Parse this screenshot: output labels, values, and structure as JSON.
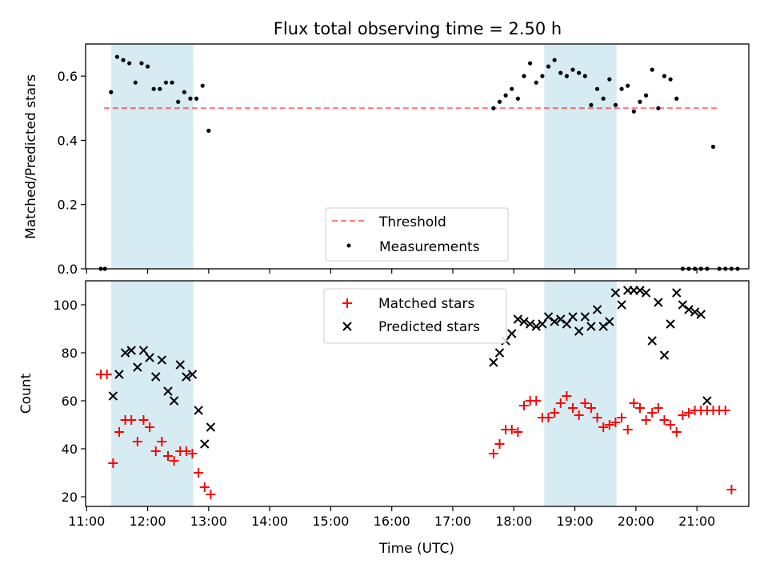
{
  "figure_title": "Flux total observing time = 2.50 h",
  "colors": {
    "span": "#add8e6",
    "threshold": "#ff0000",
    "measurement": "#000000",
    "matched": "#ff0000",
    "predicted": "#000000"
  },
  "chart_data": [
    {
      "type": "scatter",
      "panel": "top",
      "ylabel": "Matched/Predicted stars",
      "xlabel": "",
      "ylim": [
        0,
        0.7
      ],
      "xlim": [
        "10:59",
        "21:51"
      ],
      "yticks": [
        "0.0",
        "0.2",
        "0.4",
        "0.6"
      ],
      "ytick_values": [
        0,
        0.2,
        0.4,
        0.6
      ],
      "shaded_spans": [
        [
          "11:24",
          "12:45"
        ],
        [
          "18:30",
          "19:41"
        ]
      ],
      "threshold": {
        "label": "Threshold",
        "value": 0.5,
        "x_range": [
          "11:17",
          "21:21"
        ]
      },
      "legend": {
        "placement": "lower-center",
        "entries": [
          "Threshold",
          "Measurements"
        ]
      },
      "series": [
        {
          "name": "Measurements",
          "x": [
            "11:14",
            "11:18",
            "11:24",
            "11:30",
            "11:36",
            "11:42",
            "11:48",
            "11:54",
            "12:00",
            "12:06",
            "12:12",
            "12:18",
            "12:24",
            "12:30",
            "12:36",
            "12:42",
            "12:48",
            "12:54",
            "13:00",
            "17:40",
            "17:46",
            "17:52",
            "17:58",
            "18:04",
            "18:10",
            "18:16",
            "18:22",
            "18:28",
            "18:34",
            "18:40",
            "18:46",
            "18:52",
            "18:58",
            "19:04",
            "19:10",
            "19:16",
            "19:22",
            "19:28",
            "19:34",
            "19:40",
            "19:46",
            "19:52",
            "19:58",
            "20:04",
            "20:10",
            "20:16",
            "20:22",
            "20:28",
            "20:34",
            "20:40",
            "20:46",
            "20:52",
            "20:58",
            "21:04",
            "21:10",
            "21:16",
            "21:22",
            "21:28",
            "21:34",
            "21:40"
          ],
          "y": [
            0.0,
            0.0,
            0.55,
            0.66,
            0.65,
            0.64,
            0.58,
            0.64,
            0.63,
            0.56,
            0.56,
            0.58,
            0.58,
            0.52,
            0.55,
            0.53,
            0.53,
            0.57,
            0.43,
            0.5,
            0.52,
            0.54,
            0.56,
            0.53,
            0.6,
            0.64,
            0.58,
            0.6,
            0.63,
            0.65,
            0.61,
            0.6,
            0.62,
            0.61,
            0.6,
            0.51,
            0.56,
            0.53,
            0.59,
            0.51,
            0.56,
            0.57,
            0.49,
            0.52,
            0.54,
            0.62,
            0.5,
            0.6,
            0.59,
            0.53,
            0.0,
            0.0,
            0.0,
            0.0,
            0.0,
            0.38,
            0.0,
            0.0,
            0.0,
            0.0
          ]
        }
      ]
    },
    {
      "type": "scatter",
      "panel": "bottom",
      "ylabel": "Count",
      "xlabel": "Time (UTC)",
      "ylim": [
        16,
        110
      ],
      "xlim": [
        "10:59",
        "21:51"
      ],
      "yticks": [
        "20",
        "40",
        "60",
        "80",
        "100"
      ],
      "ytick_values": [
        20,
        40,
        60,
        80,
        100
      ],
      "xticks": [
        "11:00",
        "12:00",
        "13:00",
        "14:00",
        "15:00",
        "16:00",
        "17:00",
        "18:00",
        "19:00",
        "20:00",
        "21:00"
      ],
      "shaded_spans": [
        [
          "11:24",
          "12:45"
        ],
        [
          "18:30",
          "19:41"
        ]
      ],
      "legend": {
        "placement": "upper-center",
        "entries": [
          "Matched stars",
          "Predicted stars"
        ]
      },
      "series": [
        {
          "name": "Matched stars",
          "marker": "plus",
          "x": [
            "11:14",
            "11:20",
            "11:26",
            "11:32",
            "11:38",
            "11:44",
            "11:50",
            "11:56",
            "12:02",
            "12:08",
            "12:14",
            "12:20",
            "12:26",
            "12:32",
            "12:38",
            "12:44",
            "12:50",
            "12:56",
            "13:02",
            "17:40",
            "17:46",
            "17:52",
            "17:58",
            "18:04",
            "18:10",
            "18:16",
            "18:22",
            "18:28",
            "18:34",
            "18:40",
            "18:46",
            "18:52",
            "18:58",
            "19:04",
            "19:10",
            "19:16",
            "19:22",
            "19:28",
            "19:34",
            "19:40",
            "19:46",
            "19:52",
            "19:58",
            "20:04",
            "20:10",
            "20:16",
            "20:22",
            "20:28",
            "20:34",
            "20:40",
            "20:46",
            "20:52",
            "20:58",
            "21:04",
            "21:10",
            "21:16",
            "21:22",
            "21:28",
            "21:34"
          ],
          "y": [
            71,
            71,
            34,
            47,
            52,
            52,
            43,
            52,
            49,
            39,
            43,
            37,
            35,
            39,
            39,
            38,
            30,
            24,
            21,
            38,
            42,
            48,
            48,
            47,
            58,
            60,
            60,
            53,
            53,
            55,
            59,
            62,
            57,
            54,
            59,
            57,
            53,
            49,
            50,
            51,
            53,
            48,
            59,
            57,
            52,
            55,
            57,
            52,
            50,
            47,
            54,
            55,
            56,
            56,
            56,
            56,
            56,
            56,
            23
          ]
        },
        {
          "name": "Predicted stars",
          "marker": "x",
          "x": [
            "11:26",
            "11:32",
            "11:38",
            "11:44",
            "11:50",
            "11:56",
            "12:02",
            "12:08",
            "12:14",
            "12:20",
            "12:26",
            "12:32",
            "12:38",
            "12:44",
            "12:50",
            "12:56",
            "13:02",
            "17:40",
            "17:46",
            "17:52",
            "17:58",
            "18:04",
            "18:10",
            "18:16",
            "18:22",
            "18:28",
            "18:34",
            "18:40",
            "18:46",
            "18:52",
            "18:58",
            "19:04",
            "19:10",
            "19:16",
            "19:22",
            "19:28",
            "19:34",
            "19:40",
            "19:46",
            "19:52",
            "19:58",
            "20:04",
            "20:10",
            "20:16",
            "20:22",
            "20:28",
            "20:34",
            "20:40",
            "20:46",
            "20:52",
            "20:58",
            "21:04",
            "21:10"
          ],
          "y": [
            62,
            71,
            80,
            81,
            74,
            81,
            78,
            70,
            77,
            64,
            60,
            75,
            70,
            71,
            56,
            42,
            49,
            76,
            80,
            85,
            88,
            94,
            93,
            92,
            91,
            92,
            95,
            93,
            94,
            92,
            95,
            89,
            95,
            91,
            98,
            91,
            93,
            105,
            100,
            106,
            106,
            106,
            105,
            85,
            101,
            79,
            92,
            105,
            100,
            98,
            97,
            96,
            60
          ]
        }
      ]
    }
  ]
}
